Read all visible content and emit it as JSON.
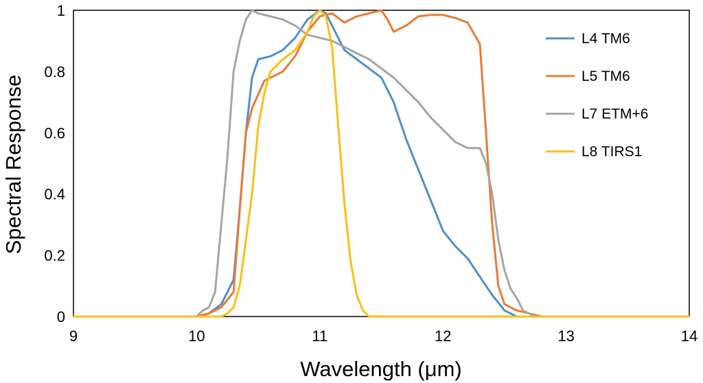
{
  "chart_data": {
    "type": "line",
    "title": "",
    "xlabel": "Wavelength  (μm)",
    "ylabel": "Spectral  Response",
    "xlim": [
      9,
      14
    ],
    "ylim": [
      0,
      1
    ],
    "x_ticks": [
      9,
      10,
      11,
      12,
      13,
      14
    ],
    "y_ticks": [
      0,
      0.2,
      0.4,
      0.6,
      0.8,
      1
    ],
    "y_tick_labels": [
      "0",
      "0.2",
      "0.4",
      "0.6",
      "0.8",
      "1"
    ],
    "grid": false,
    "legend_position": "top-right",
    "series": [
      {
        "name": "L4 TM6",
        "color": "#4e8fcc",
        "points": [
          [
            9,
            0
          ],
          [
            10,
            0
          ],
          [
            10.1,
            0.01
          ],
          [
            10.2,
            0.04
          ],
          [
            10.3,
            0.12
          ],
          [
            10.35,
            0.35
          ],
          [
            10.4,
            0.6
          ],
          [
            10.45,
            0.78
          ],
          [
            10.5,
            0.84
          ],
          [
            10.6,
            0.85
          ],
          [
            10.7,
            0.87
          ],
          [
            10.8,
            0.91
          ],
          [
            10.9,
            0.97
          ],
          [
            11.0,
            1.0
          ],
          [
            11.05,
            0.99
          ],
          [
            11.1,
            0.95
          ],
          [
            11.2,
            0.87
          ],
          [
            11.3,
            0.84
          ],
          [
            11.4,
            0.81
          ],
          [
            11.5,
            0.78
          ],
          [
            11.6,
            0.7
          ],
          [
            11.7,
            0.58
          ],
          [
            11.8,
            0.48
          ],
          [
            11.9,
            0.38
          ],
          [
            12.0,
            0.28
          ],
          [
            12.1,
            0.23
          ],
          [
            12.2,
            0.19
          ],
          [
            12.3,
            0.13
          ],
          [
            12.4,
            0.07
          ],
          [
            12.5,
            0.02
          ],
          [
            12.6,
            0.0
          ],
          [
            14,
            0
          ]
        ]
      },
      {
        "name": "L5 TM6",
        "color": "#ea7a33",
        "points": [
          [
            9,
            0
          ],
          [
            10,
            0
          ],
          [
            10.1,
            0.01
          ],
          [
            10.2,
            0.03
          ],
          [
            10.3,
            0.08
          ],
          [
            10.35,
            0.35
          ],
          [
            10.4,
            0.6
          ],
          [
            10.45,
            0.68
          ],
          [
            10.55,
            0.77
          ],
          [
            10.7,
            0.8
          ],
          [
            10.8,
            0.85
          ],
          [
            10.9,
            0.93
          ],
          [
            11.0,
            0.98
          ],
          [
            11.1,
            0.99
          ],
          [
            11.2,
            0.96
          ],
          [
            11.3,
            0.98
          ],
          [
            11.4,
            0.99
          ],
          [
            11.5,
            1.0
          ],
          [
            11.55,
            0.97
          ],
          [
            11.6,
            0.93
          ],
          [
            11.7,
            0.95
          ],
          [
            11.8,
            0.98
          ],
          [
            11.9,
            0.985
          ],
          [
            12.0,
            0.985
          ],
          [
            12.1,
            0.975
          ],
          [
            12.2,
            0.96
          ],
          [
            12.3,
            0.89
          ],
          [
            12.35,
            0.6
          ],
          [
            12.4,
            0.3
          ],
          [
            12.45,
            0.1
          ],
          [
            12.5,
            0.04
          ],
          [
            12.6,
            0.02
          ],
          [
            12.7,
            0.01
          ],
          [
            12.8,
            0.0
          ],
          [
            14,
            0
          ]
        ]
      },
      {
        "name": "L7 ETM+6",
        "color": "#a5a5a5",
        "points": [
          [
            9,
            0
          ],
          [
            10,
            0
          ],
          [
            10.05,
            0.02
          ],
          [
            10.1,
            0.03
          ],
          [
            10.15,
            0.08
          ],
          [
            10.2,
            0.3
          ],
          [
            10.25,
            0.52
          ],
          [
            10.3,
            0.8
          ],
          [
            10.35,
            0.9
          ],
          [
            10.4,
            0.97
          ],
          [
            10.45,
            1.0
          ],
          [
            10.5,
            0.99
          ],
          [
            10.6,
            0.98
          ],
          [
            10.7,
            0.97
          ],
          [
            10.8,
            0.95
          ],
          [
            10.9,
            0.92
          ],
          [
            11.0,
            0.91
          ],
          [
            11.1,
            0.9
          ],
          [
            11.2,
            0.88
          ],
          [
            11.3,
            0.86
          ],
          [
            11.4,
            0.84
          ],
          [
            11.5,
            0.81
          ],
          [
            11.6,
            0.78
          ],
          [
            11.7,
            0.74
          ],
          [
            11.8,
            0.7
          ],
          [
            11.9,
            0.65
          ],
          [
            12.0,
            0.61
          ],
          [
            12.1,
            0.57
          ],
          [
            12.2,
            0.55
          ],
          [
            12.3,
            0.55
          ],
          [
            12.35,
            0.5
          ],
          [
            12.4,
            0.4
          ],
          [
            12.45,
            0.25
          ],
          [
            12.5,
            0.15
          ],
          [
            12.55,
            0.09
          ],
          [
            12.6,
            0.06
          ],
          [
            12.65,
            0.02
          ],
          [
            12.7,
            0.01
          ],
          [
            12.75,
            0.0
          ],
          [
            14,
            0
          ]
        ]
      },
      {
        "name": "L8 TIRS1",
        "color": "#fbbf14",
        "points": [
          [
            9,
            0
          ],
          [
            10.2,
            0
          ],
          [
            10.25,
            0.01
          ],
          [
            10.3,
            0.03
          ],
          [
            10.35,
            0.1
          ],
          [
            10.4,
            0.25
          ],
          [
            10.45,
            0.4
          ],
          [
            10.5,
            0.62
          ],
          [
            10.55,
            0.73
          ],
          [
            10.6,
            0.8
          ],
          [
            10.7,
            0.84
          ],
          [
            10.8,
            0.87
          ],
          [
            10.9,
            0.93
          ],
          [
            10.95,
            0.98
          ],
          [
            11.0,
            1.0
          ],
          [
            11.05,
            0.98
          ],
          [
            11.1,
            0.88
          ],
          [
            11.15,
            0.62
          ],
          [
            11.2,
            0.37
          ],
          [
            11.25,
            0.18
          ],
          [
            11.3,
            0.07
          ],
          [
            11.35,
            0.02
          ],
          [
            11.4,
            0.0
          ],
          [
            14,
            0
          ]
        ]
      }
    ]
  }
}
